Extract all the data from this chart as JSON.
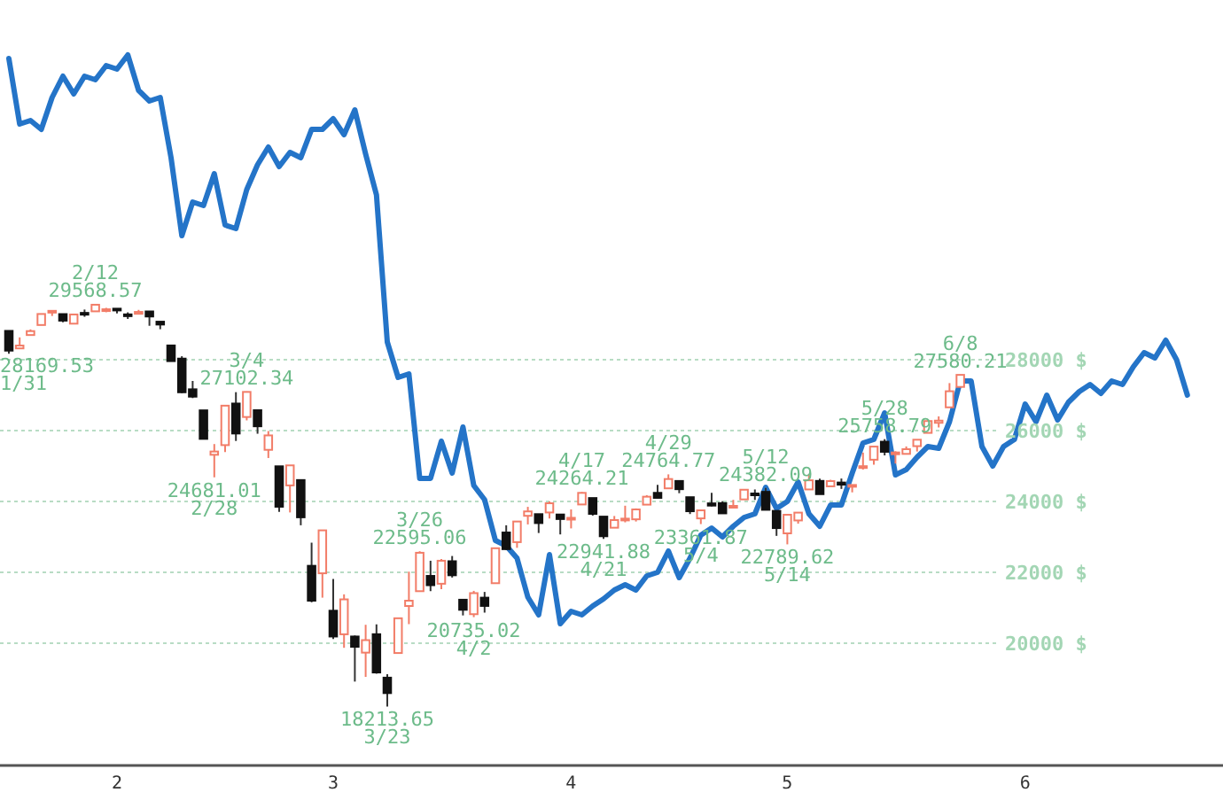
{
  "chart_data": {
    "type": "candlestick",
    "categories": [
      null,
      null,
      null,
      null,
      null,
      null,
      null,
      null,
      null,
      null,
      "2",
      null,
      null,
      null,
      null,
      null,
      null,
      null,
      null,
      null,
      null,
      null,
      null,
      null,
      null,
      null,
      null,
      null,
      null,
      null,
      "3",
      null,
      null,
      null,
      null,
      null,
      null,
      null,
      null,
      null,
      null,
      null,
      null,
      null,
      null,
      null,
      null,
      null,
      null,
      null,
      null,
      null,
      "4",
      null,
      null,
      null,
      null,
      null,
      null,
      null,
      null,
      null,
      null,
      null,
      null,
      null,
      null,
      null,
      null,
      null,
      null,
      null,
      "5",
      null,
      null,
      null,
      null,
      null,
      null,
      null,
      null,
      null,
      null,
      null,
      null,
      null,
      null,
      null,
      null,
      null,
      null,
      null,
      null,
      null,
      "6",
      null,
      null,
      null,
      null,
      null,
      null,
      null,
      null,
      null,
      null,
      null,
      null,
      null,
      null,
      null
    ],
    "ohlc": [
      [
        28813,
        28813,
        28169.53,
        28256
      ],
      [
        28319,
        28630,
        28319,
        28399
      ],
      [
        28696,
        28855,
        28696,
        28807
      ],
      [
        28979,
        29291,
        28979,
        29290
      ],
      [
        29366,
        29380,
        29234,
        29379
      ],
      [
        29287,
        29287,
        29056,
        29102
      ],
      [
        29017,
        29277,
        29000,
        29276
      ],
      [
        29321,
        29415,
        29211,
        29276
      ],
      [
        29365,
        29568.57,
        29365,
        29551
      ],
      [
        29422,
        29464,
        29340,
        29423
      ],
      [
        29440,
        29440,
        29304,
        29398
      ],
      [
        29279,
        29336,
        29150,
        29232
      ],
      [
        29296,
        29406,
        29296,
        29348
      ],
      [
        29362,
        29370,
        28957,
        29219
      ],
      [
        29073,
        29073,
        28860,
        28992
      ],
      [
        28402,
        28402,
        27960,
        27960
      ],
      [
        28031,
        28098,
        27057,
        27081
      ],
      [
        27165,
        27400,
        26917,
        26957
      ],
      [
        26571,
        26571,
        25766,
        25766
      ],
      [
        25317,
        25620,
        24681.01,
        25409
      ],
      [
        25590,
        26706,
        25391,
        26703
      ],
      [
        26763,
        27084,
        25707,
        25917
      ],
      [
        26383,
        27102.34,
        26288,
        27091
      ],
      [
        26575,
        26575,
        25911,
        26121
      ],
      [
        25457,
        25987,
        25226,
        25864
      ],
      [
        24992,
        24992,
        23706,
        23851
      ],
      [
        24453,
        25020,
        23690,
        25018
      ],
      [
        24604,
        24604,
        23328,
        23553
      ],
      [
        22184,
        22837,
        21154,
        21200
      ],
      [
        21973,
        23186,
        21285,
        23185
      ],
      [
        20917,
        21813,
        20116,
        20189
      ],
      [
        20252,
        21379,
        19870,
        21237
      ],
      [
        20189,
        20217,
        18917,
        19899
      ],
      [
        19734,
        20520,
        19049,
        20087
      ],
      [
        20254,
        20532,
        19140,
        19174
      ],
      [
        19028,
        19122,
        18213.65,
        18592
      ],
      [
        19723,
        20713,
        19710,
        20704
      ],
      [
        21050,
        22019,
        20538,
        21200
      ],
      [
        21468,
        22595.06,
        21468,
        22552
      ],
      [
        21899,
        22327,
        21469,
        21637
      ],
      [
        21678,
        22378,
        21523,
        22327
      ],
      [
        22313,
        22461,
        21853,
        21917
      ],
      [
        21227,
        21227,
        20784,
        20943
      ],
      [
        20819,
        21477,
        20735.02,
        21413
      ],
      [
        21285,
        21447,
        20863,
        21052
      ],
      [
        21693,
        22680,
        21693,
        22680
      ],
      [
        23124,
        23328,
        22634,
        22654
      ],
      [
        22852,
        23450,
        22692,
        23434
      ],
      [
        23595,
        23848,
        23352,
        23719
      ],
      [
        23642,
        23642,
        23110,
        23390
      ],
      [
        23689,
        23999,
        23519,
        23949
      ],
      [
        23632,
        23645,
        23070,
        23504
      ],
      [
        23516,
        23776,
        23240,
        23538
      ],
      [
        23915,
        24264.21,
        23915,
        24242
      ],
      [
        24096,
        24096,
        23600,
        23650
      ],
      [
        23572,
        23572,
        22941.88,
        23018
      ],
      [
        23259,
        23590,
        23259,
        23475
      ],
      [
        23486,
        23880,
        23411,
        23515
      ],
      [
        23496,
        23804,
        23434,
        23775
      ],
      [
        23910,
        24178,
        23910,
        24134
      ],
      [
        24243,
        24469,
        24086,
        24101
      ],
      [
        24370,
        24764.77,
        24370,
        24633
      ],
      [
        24578,
        24578,
        24233,
        24346
      ],
      [
        24120,
        24120,
        23645,
        23724
      ],
      [
        23522,
        23764,
        23361.87,
        23749
      ],
      [
        23946,
        24241,
        23865,
        23883
      ],
      [
        23953,
        24008,
        23650,
        23664
      ],
      [
        23863,
        24045,
        23829,
        23875
      ],
      [
        24058,
        24333,
        24058,
        24331
      ],
      [
        24225,
        24338,
        24043,
        24221
      ],
      [
        24271,
        24382.09,
        23764,
        23764
      ],
      [
        23734,
        23735,
        23029,
        23248
      ],
      [
        23100,
        23631,
        22789.62,
        23625
      ],
      [
        23464,
        23685,
        23373,
        23685
      ],
      [
        24339,
        24770,
        24339,
        24597
      ],
      [
        24580,
        24645,
        24200,
        24206
      ],
      [
        24427,
        24612,
        24427,
        24575
      ],
      [
        24534,
        24647,
        24354,
        24474
      ],
      [
        24465,
        24465,
        24257,
        24465
      ],
      [
        24994,
        25379,
        24900,
        24995
      ],
      [
        25178,
        25548,
        25040,
        25548
      ],
      [
        25686,
        25758.79,
        25300,
        25401
      ],
      [
        25343,
        25418,
        25069,
        25383
      ],
      [
        25342,
        25552,
        25342,
        25475
      ],
      [
        25561,
        25742,
        25410,
        25742
      ],
      [
        25935,
        26291,
        25935,
        26269
      ],
      [
        26219,
        26400,
        26088,
        26281
      ],
      [
        26656,
        27340,
        26656,
        27110
      ],
      [
        27232,
        27580.21,
        27232,
        27572
      ],
      null,
      null,
      null,
      null,
      null,
      null,
      null,
      null,
      null,
      null,
      null,
      null,
      null,
      null,
      null,
      null,
      null,
      null,
      null,
      null,
      null
    ],
    "series": [
      {
        "type": "line",
        "color": "#2474c8",
        "values": [
          36500,
          34650,
          34750,
          34500,
          35400,
          36000,
          35500,
          36000,
          35900,
          36300,
          36200,
          36600,
          35600,
          35300,
          35400,
          33700,
          31500,
          32450,
          32350,
          33250,
          31800,
          31700,
          32800,
          33500,
          34000,
          33450,
          33850,
          33700,
          34500,
          34500,
          34800,
          34350,
          35050,
          33800,
          32650,
          28500,
          27500,
          27600,
          24650,
          24650,
          25700,
          24800,
          26100,
          24450,
          24050,
          22900,
          22750,
          22400,
          21300,
          20800,
          22500,
          20550,
          20900,
          20800,
          21050,
          21250,
          21500,
          21650,
          21500,
          21900,
          22000,
          22600,
          21850,
          22400,
          23050,
          23250,
          23000,
          23300,
          23550,
          23650,
          24400,
          23800,
          24000,
          24550,
          23650,
          23300,
          23900,
          23900,
          24800,
          25650,
          25750,
          26500,
          24750,
          24900,
          25250,
          25550,
          25500,
          26250,
          27400,
          27400,
          25550,
          25000,
          25550,
          25750,
          26750,
          26250,
          27000,
          26300,
          26800,
          27100,
          27300,
          27050,
          27400,
          27300,
          27800,
          28200,
          28050,
          28550,
          28000,
          27000
        ]
      }
    ],
    "ylim": [
      16550,
      38150
    ],
    "yticks": [
      {
        "value": 20000,
        "label": "20000 $"
      },
      {
        "value": 22000,
        "label": "22000 $"
      },
      {
        "value": 24000,
        "label": "24000 $"
      },
      {
        "value": 26000,
        "label": "26000 $"
      },
      {
        "value": 28000,
        "label": "28000 $"
      }
    ],
    "grid": "y",
    "annotations": [
      "28169.53\n1/31",
      {
        "text": "2/12\n29568.57",
        "y": 29568.57
      },
      {
        "text": "24681.01\n2/28",
        "y": 24681.01
      },
      {
        "text": "3/4\n27102.34",
        "y": 27102.34
      },
      {
        "text": "18213.65\n3/23",
        "y": 18213.65
      },
      {
        "text": "3/26\n22595.06",
        "y": 22595.06
      },
      {
        "text": "20735.02\n4/2",
        "y": 20735.02
      },
      {
        "text": "4/17\n24264.21",
        "y": 24264.21
      },
      {
        "text": "22941.88\n4/21",
        "y": 22941.88
      },
      {
        "text": "4/29\n24764.77",
        "y": 24764.77
      },
      {
        "text": "23361.87\n5/4",
        "y": 23361.87
      },
      {
        "text": "5/12\n24382.09",
        "y": 24382.09
      },
      {
        "text": "22789.62\n5/14",
        "y": 22789.62
      },
      {
        "text": "5/28\n25758.79",
        "y": 25758.79
      },
      {
        "text": "6/8\n27580.21",
        "y": 27580.21
      }
    ]
  }
}
